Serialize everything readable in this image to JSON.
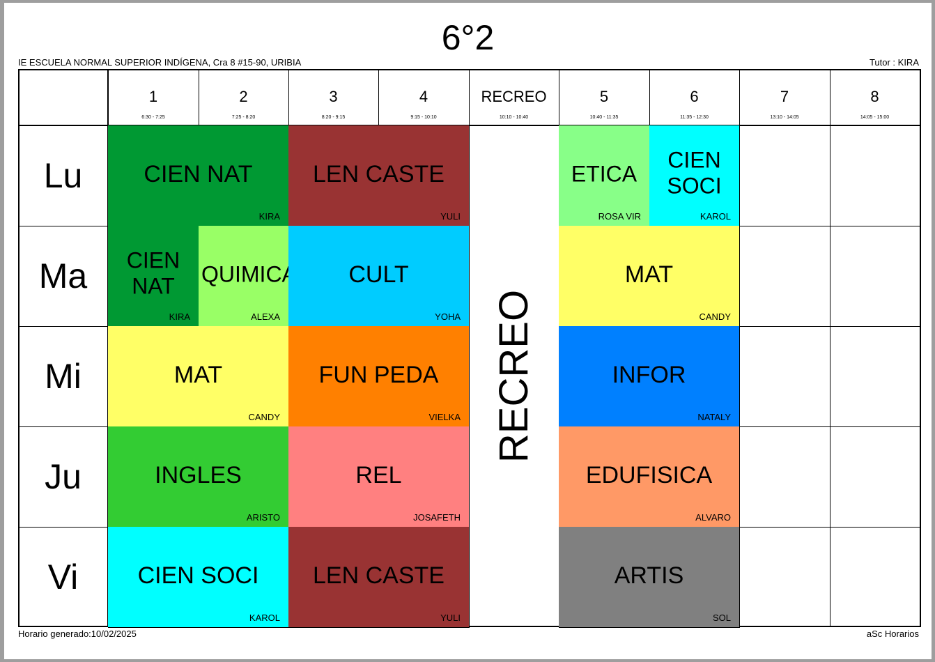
{
  "title": "6°2",
  "school": "IE ESCUELA NORMAL SUPERIOR INDÍGENA, Cra 8 #15-90, URIBIA",
  "tutor": "Tutor : KIRA",
  "footer": {
    "generated": "Horario generado:10/02/2025",
    "brand": "aSc Horarios"
  },
  "periods": [
    {
      "num": "1",
      "time": "6:30 - 7:25"
    },
    {
      "num": "2",
      "time": "7:25 - 8:20"
    },
    {
      "num": "3",
      "time": "8:20 - 9:15"
    },
    {
      "num": "4",
      "time": "9:15 - 10:10"
    },
    {
      "num": "RECREO",
      "time": "10:10 - 10:40"
    },
    {
      "num": "5",
      "time": "10:40 - 11:35"
    },
    {
      "num": "6",
      "time": "11:35 - 12:30"
    },
    {
      "num": "7",
      "time": "13:10 - 14:05"
    },
    {
      "num": "8",
      "time": "14:05 - 15:00"
    }
  ],
  "days": [
    "Lu",
    "Ma",
    "Mi",
    "Ju",
    "Vi"
  ],
  "recreo_label": "RECREO",
  "lessons": [
    {
      "day": 0,
      "start": 0,
      "span": 2,
      "subject": "CIEN NAT",
      "teacher": "KIRA",
      "color": "#009933"
    },
    {
      "day": 0,
      "start": 2,
      "span": 2,
      "subject": "LEN CASTE",
      "teacher": "YULI",
      "color": "#993333"
    },
    {
      "day": 0,
      "start": 5,
      "span": 1,
      "subject": "ETICA",
      "teacher": "ROSA VIR",
      "color": "#88ff88"
    },
    {
      "day": 0,
      "start": 6,
      "span": 1,
      "subject": "CIEN SOCI",
      "teacher": "KAROL",
      "color": "#00ffff"
    },
    {
      "day": 1,
      "start": 0,
      "span": 1,
      "subject": "CIEN NAT",
      "teacher": "KIRA",
      "color": "#009933"
    },
    {
      "day": 1,
      "start": 1,
      "span": 1,
      "subject": "QUIMICA",
      "teacher": "ALEXA",
      "color": "#99ff66"
    },
    {
      "day": 1,
      "start": 2,
      "span": 2,
      "subject": "CULT",
      "teacher": "YOHA",
      "color": "#00ccff"
    },
    {
      "day": 1,
      "start": 5,
      "span": 2,
      "subject": "MAT",
      "teacher": "CANDY",
      "color": "#ffff66"
    },
    {
      "day": 2,
      "start": 0,
      "span": 2,
      "subject": "MAT",
      "teacher": "CANDY",
      "color": "#ffff66"
    },
    {
      "day": 2,
      "start": 2,
      "span": 2,
      "subject": "FUN PEDA",
      "teacher": "VIELKA",
      "color": "#ff8000"
    },
    {
      "day": 2,
      "start": 5,
      "span": 2,
      "subject": "INFOR",
      "teacher": "NATALY",
      "color": "#0080ff"
    },
    {
      "day": 3,
      "start": 0,
      "span": 2,
      "subject": "INGLES",
      "teacher": "ARISTO",
      "color": "#33cc33"
    },
    {
      "day": 3,
      "start": 2,
      "span": 2,
      "subject": "REL",
      "teacher": "JOSAFETH",
      "color": "#ff8080"
    },
    {
      "day": 3,
      "start": 5,
      "span": 2,
      "subject": "EDUFISICA",
      "teacher": "ALVARO",
      "color": "#ff9966"
    },
    {
      "day": 4,
      "start": 0,
      "span": 2,
      "subject": "CIEN SOCI",
      "teacher": "KAROL",
      "color": "#00ffff"
    },
    {
      "day": 4,
      "start": 2,
      "span": 2,
      "subject": "LEN CASTE",
      "teacher": "YULI",
      "color": "#993333"
    },
    {
      "day": 4,
      "start": 5,
      "span": 2,
      "subject": "ARTIS",
      "teacher": "SOL",
      "color": "#808080"
    }
  ]
}
